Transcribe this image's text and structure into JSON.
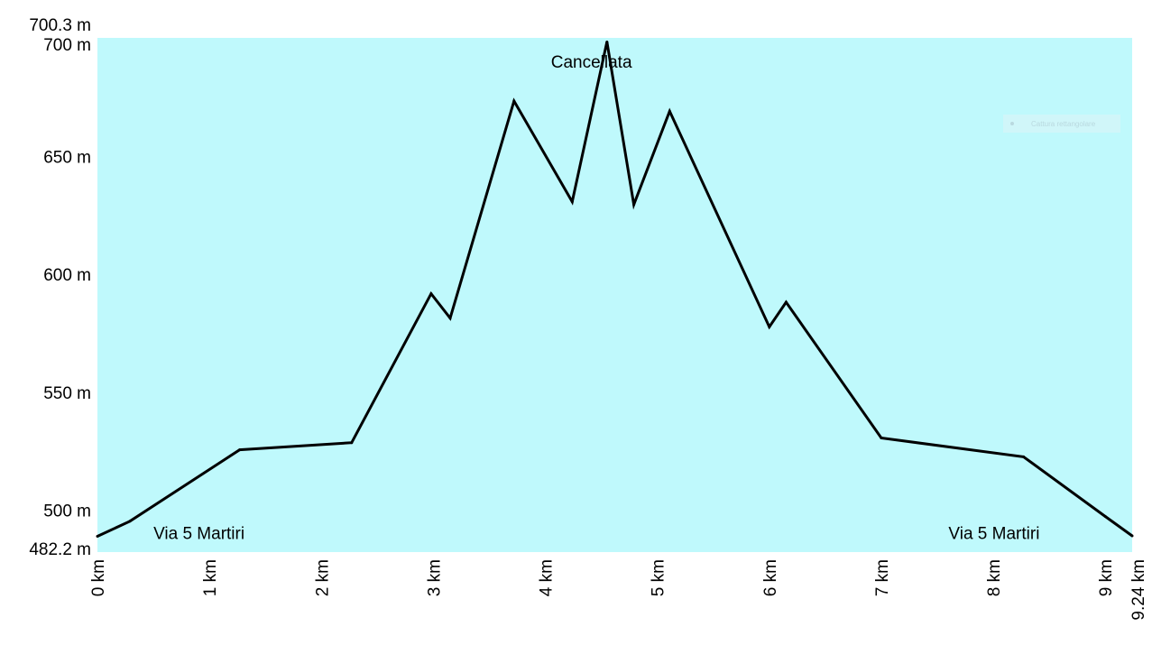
{
  "chart_data": {
    "type": "area",
    "title": "",
    "xlabel": "",
    "ylabel": "",
    "xlim": [
      0,
      9.24
    ],
    "ylim": [
      482.2,
      700.3
    ],
    "grid": false,
    "fill_color": "#bff9fc",
    "line_color": "#000000",
    "y_ticks": [
      {
        "value": 700.3,
        "label": "700.3 m"
      },
      {
        "value": 700,
        "label": "700 m"
      },
      {
        "value": 650,
        "label": "650 m"
      },
      {
        "value": 600,
        "label": "600 m"
      },
      {
        "value": 550,
        "label": "550 m"
      },
      {
        "value": 500,
        "label": "500 m"
      },
      {
        "value": 482.2,
        "label": "482.2 m"
      }
    ],
    "x_ticks": [
      {
        "value": 0,
        "label": "0 km"
      },
      {
        "value": 1,
        "label": "1 km"
      },
      {
        "value": 2,
        "label": "2 km"
      },
      {
        "value": 3,
        "label": "3 km"
      },
      {
        "value": 4,
        "label": "4 km"
      },
      {
        "value": 5,
        "label": "5 km"
      },
      {
        "value": 6,
        "label": "6 km"
      },
      {
        "value": 7,
        "label": "7 km"
      },
      {
        "value": 8,
        "label": "8 km"
      },
      {
        "value": 9,
        "label": "9 km"
      },
      {
        "value": 9.24,
        "label": "9.24 km"
      }
    ],
    "series": [
      {
        "x": [
          0,
          0.29,
          1.27,
          2.27,
          2.98,
          3.15,
          3.72,
          4.24,
          4.55,
          4.79,
          5.11,
          6.0,
          6.15,
          7.0,
          8.27,
          9.0,
          9.24
        ],
        "y": [
          488.9,
          495.3,
          525.6,
          528.6,
          591.8,
          581.4,
          673.5,
          630.8,
          698.6,
          629.6,
          669.2,
          577.7,
          588.2,
          530.6,
          522.6,
          497.3,
          489.1
        ]
      }
    ],
    "annotations": [
      {
        "text": "Cancellata",
        "x": 4.05,
        "y": 690
      },
      {
        "text": "Via 5 Martiri",
        "x": 0.5,
        "y": 490
      },
      {
        "text": "Via 5 Martiri",
        "x": 7.6,
        "y": 490
      }
    ]
  },
  "watermark": "Cattura rettangolare"
}
